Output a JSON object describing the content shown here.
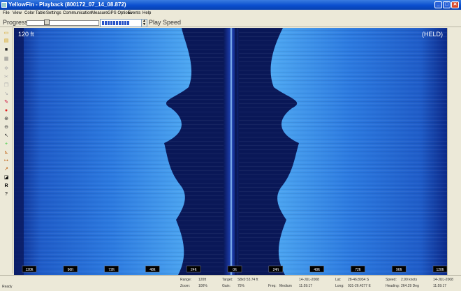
{
  "window": {
    "title": "YellowFin - Playback (800172_07_14_08.872)"
  },
  "menu": [
    "File",
    "View",
    "Color Table",
    "Settings",
    "Communication",
    "Measure",
    "GPS Options",
    "Events",
    "Help"
  ],
  "toolbar": {
    "progress_label": "Progress",
    "play_speed_label": "Play Speed",
    "progress_fraction": 0.25,
    "speed_fraction": 0.72
  },
  "sonar": {
    "depth_label": "120 ft",
    "held_label": "(HELD)",
    "range_ticks": [
      "120ft",
      "96ft",
      "72ft",
      "48ft",
      "24ft",
      "0ft",
      "24ft",
      "48ft",
      "72ft",
      "96ft",
      "120ft"
    ]
  },
  "status": {
    "ready": "Ready",
    "range_label": "Range:",
    "range_value": "120ft",
    "target_label": "Target:",
    "target_value": "S8x0 53.74 ft",
    "date": "14-JUL-2008",
    "lat_label": "Lat:",
    "lat_value": "28-46.8934 S",
    "speed_label": "Speed:",
    "speed_value": "2.90 knots",
    "date2": "14-JUL-2008",
    "zoom_label": "Zoom:",
    "zoom_value": "100%",
    "gain_label": "Gain:",
    "gain_value": "75%",
    "freq_label": "Freq:",
    "freq_value": "Medium",
    "time": "11:59:17",
    "long_label": "Long:",
    "long_value": "031-26.4277 E",
    "heading_label": "Heading:",
    "heading_value": "264.29 Deg",
    "time2": "11:59:17"
  },
  "colors": {
    "sonar_dark": "#0a1858",
    "sonar_bright": "#4aa0f0",
    "title_blue": "#0a4fcf"
  }
}
